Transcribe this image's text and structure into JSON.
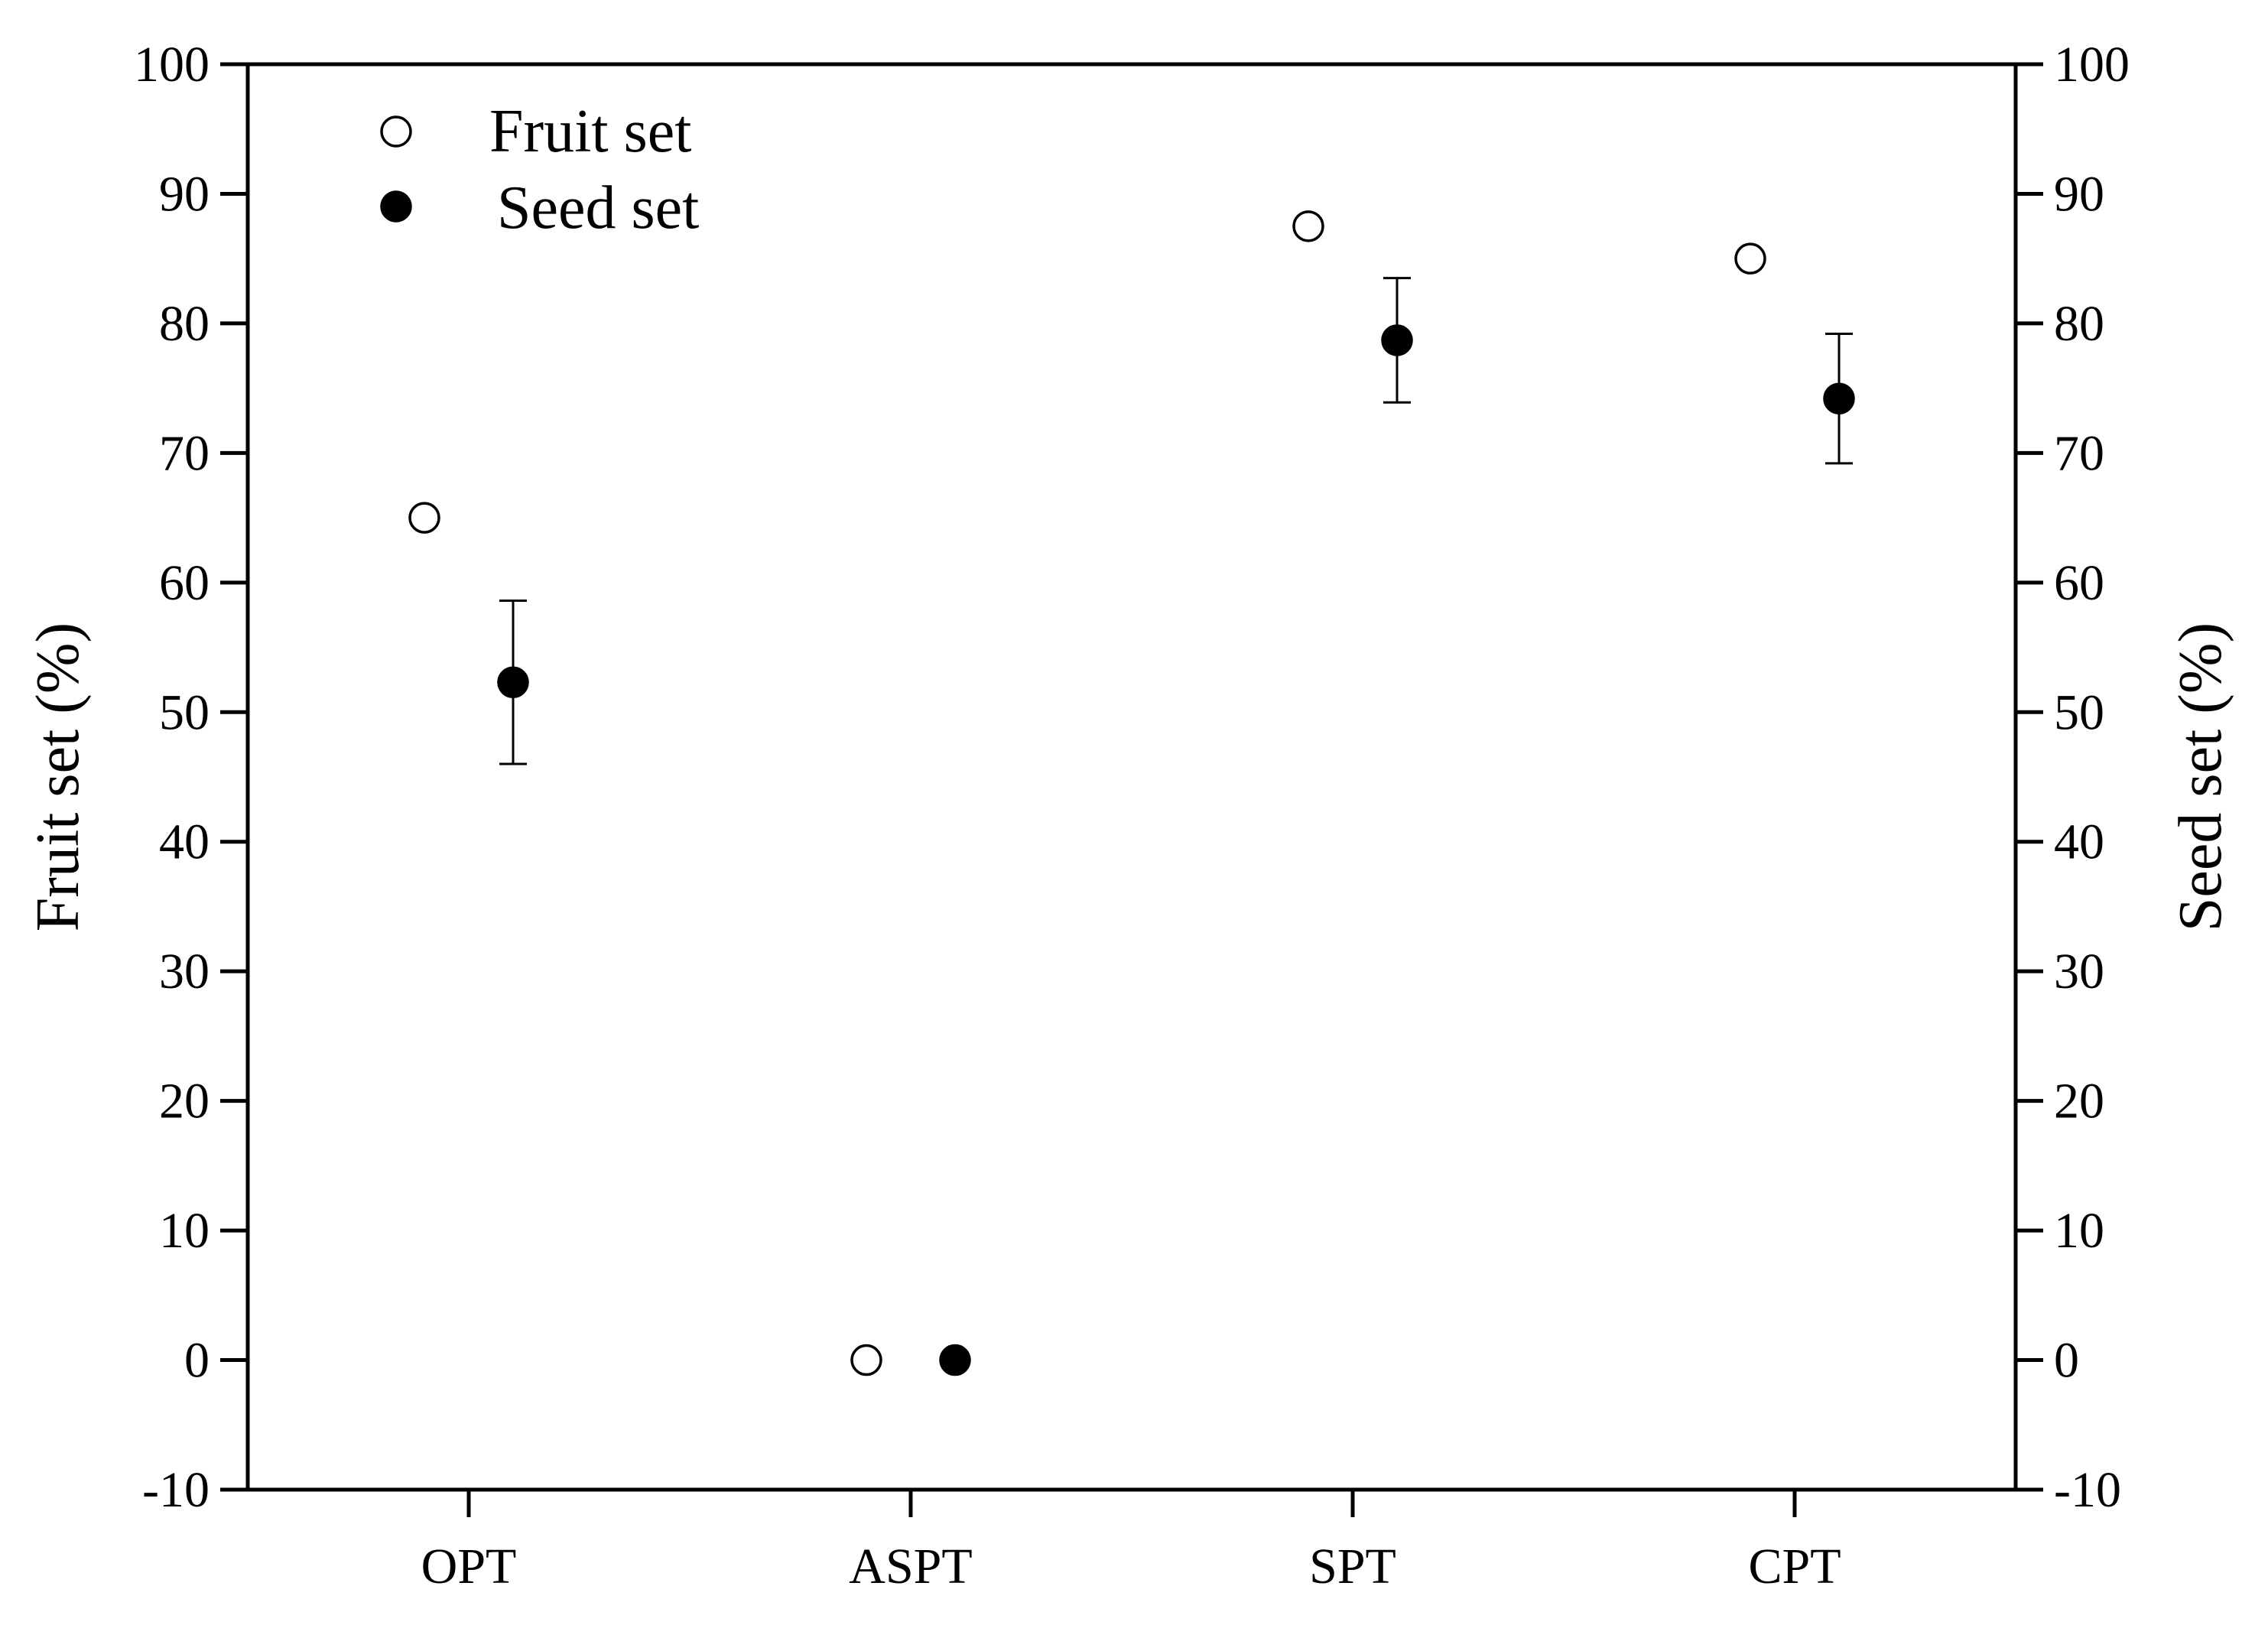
{
  "chart_data": {
    "type": "scatter",
    "categories": [
      "OPT",
      "ASPT",
      "SPT",
      "CPT"
    ],
    "ylabel_left": "Fruit set (%)",
    "ylabel_right": "Seed set (%)",
    "ylim": [
      -10,
      100
    ],
    "yticks": [
      -10,
      0,
      10,
      20,
      30,
      40,
      50,
      60,
      70,
      80,
      90,
      100
    ],
    "grid": false,
    "legend_position": "top-left",
    "series": [
      {
        "name": "Fruit set",
        "marker": "open-circle",
        "axis": "left",
        "values": [
          65,
          0,
          87.5,
          85
        ]
      },
      {
        "name": "Seed set",
        "marker": "filled-circle",
        "axis": "right",
        "values": [
          52.3,
          0,
          78.7,
          74.2
        ],
        "error": [
          6.3,
          0,
          4.8,
          5.0
        ]
      }
    ]
  }
}
